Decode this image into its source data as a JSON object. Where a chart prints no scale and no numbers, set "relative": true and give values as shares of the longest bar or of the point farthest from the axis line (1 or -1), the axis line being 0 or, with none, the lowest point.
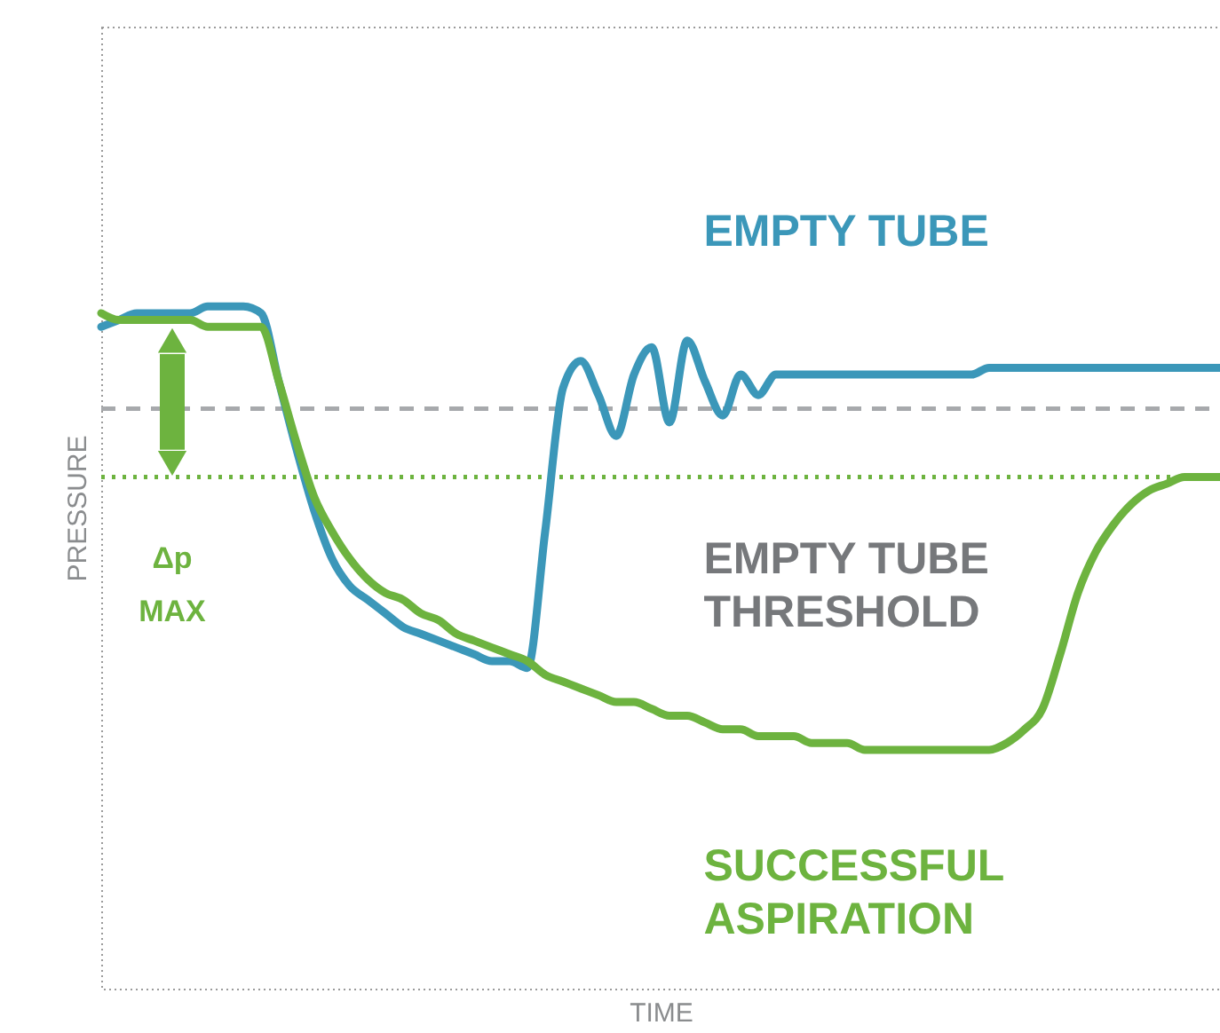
{
  "chart_data": {
    "type": "line",
    "relative": true,
    "xlabel": "TIME",
    "ylabel": "PRESSURE",
    "categories": [
      null,
      null,
      null,
      null,
      null,
      null,
      null,
      null,
      null,
      null,
      null,
      null,
      null,
      null,
      null,
      null,
      null,
      null,
      null,
      null,
      null,
      null,
      null,
      null,
      null,
      null,
      null,
      null,
      null,
      null,
      null,
      null,
      null,
      null,
      null,
      null,
      null,
      null,
      null,
      null,
      null,
      null,
      null,
      null,
      null,
      null,
      null,
      null,
      null,
      null,
      null,
      null,
      null,
      null,
      null,
      null,
      null,
      null,
      null,
      null,
      null,
      null,
      null,
      null
    ],
    "series": [
      {
        "name": "EMPTY TUBE",
        "color": "#3b97b9",
        "values": [
          0.97,
          0.98,
          0.99,
          0.99,
          0.99,
          0.99,
          1.0,
          1.0,
          1.0,
          0.99,
          0.89,
          0.79,
          0.7,
          0.63,
          0.59,
          0.57,
          0.55,
          0.53,
          0.52,
          0.51,
          0.5,
          0.49,
          0.48,
          0.48,
          0.47,
          0.67,
          0.88,
          0.92,
          0.87,
          0.81,
          0.9,
          0.94,
          0.83,
          0.95,
          0.89,
          0.84,
          0.9,
          0.87,
          0.9,
          0.9,
          0.9,
          0.9,
          0.9,
          0.9,
          0.9,
          0.9,
          0.9,
          0.9,
          0.9,
          0.9,
          0.91,
          0.91,
          0.91,
          0.91,
          0.91,
          0.91,
          0.91,
          0.91,
          0.91,
          0.91,
          0.91,
          0.91,
          0.91,
          0.91
        ]
      },
      {
        "name": "SUCCESSFUL\nASPIRATION",
        "color": "#6db33f",
        "values": [
          0.99,
          0.98,
          0.98,
          0.98,
          0.98,
          0.98,
          0.97,
          0.97,
          0.97,
          0.97,
          0.89,
          0.8,
          0.72,
          0.67,
          0.63,
          0.6,
          0.58,
          0.57,
          0.55,
          0.54,
          0.52,
          0.51,
          0.5,
          0.49,
          0.48,
          0.46,
          0.45,
          0.44,
          0.43,
          0.42,
          0.42,
          0.41,
          0.4,
          0.4,
          0.39,
          0.38,
          0.38,
          0.37,
          0.37,
          0.37,
          0.36,
          0.36,
          0.36,
          0.35,
          0.35,
          0.35,
          0.35,
          0.35,
          0.35,
          0.35,
          0.35,
          0.36,
          0.38,
          0.41,
          0.49,
          0.58,
          0.64,
          0.68,
          0.71,
          0.73,
          0.74,
          0.75,
          0.75,
          0.75
        ]
      }
    ],
    "ref_lines": [
      {
        "axis": "y",
        "value": 0.85,
        "label": "EMPTY TUBE\nTHRESHOLD",
        "color": "#a7a9ac",
        "line_style": "dashed"
      },
      {
        "axis": "y",
        "value": 0.75,
        "color": "#6db33f",
        "line_style": "dotted"
      }
    ],
    "annotations": [
      "Δp\nMAX"
    ]
  }
}
